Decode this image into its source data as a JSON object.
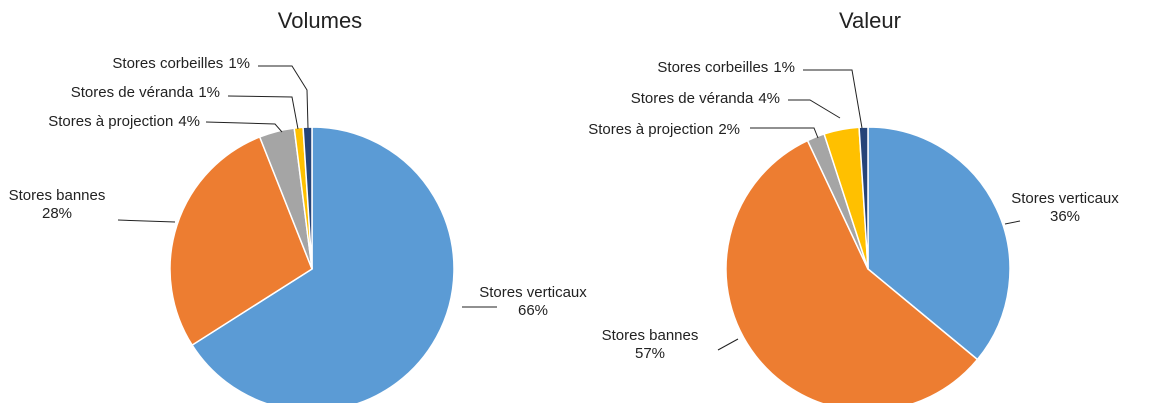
{
  "chart_data": [
    {
      "type": "pie",
      "title": "Volumes",
      "categories": [
        "Stores verticaux",
        "Stores bannes",
        "Stores à projection",
        "Stores de véranda",
        "Stores corbeilles"
      ],
      "values": [
        66,
        28,
        4,
        1,
        1
      ],
      "value_labels": [
        "66%",
        "28%",
        "4%",
        "1%",
        "1%"
      ],
      "colors": [
        "#5b9bd5",
        "#ed7d31",
        "#a5a5a5",
        "#ffc000",
        "#264478"
      ]
    },
    {
      "type": "pie",
      "title": "Valeur",
      "categories": [
        "Stores verticaux",
        "Stores bannes",
        "Stores à projection",
        "Stores de véranda",
        "Stores corbeilles"
      ],
      "values": [
        36,
        57,
        2,
        4,
        1
      ],
      "value_labels": [
        "36%",
        "57%",
        "2%",
        "4%",
        "1%"
      ],
      "colors": [
        "#5b9bd5",
        "#ed7d31",
        "#a5a5a5",
        "#ffc000",
        "#264478"
      ]
    }
  ]
}
